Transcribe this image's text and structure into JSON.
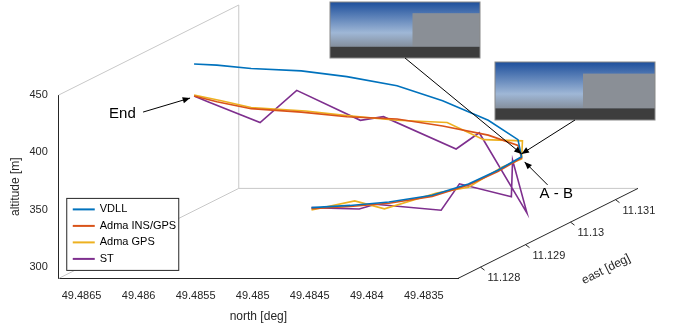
{
  "chart_data": {
    "type": "line",
    "x_label": "north [deg]",
    "y_label": "altitude [m]",
    "z_label": "east [deg]",
    "xlim": [
      49.4832,
      49.4867
    ],
    "xticks": [
      49.4835,
      49.484,
      49.4845,
      49.485,
      49.4855,
      49.486,
      49.4865
    ],
    "ylim": [
      290,
      450
    ],
    "yticks": [
      300,
      350,
      400,
      450
    ],
    "zlim": [
      11.1275,
      11.1315
    ],
    "zticks": [
      11.128,
      11.129,
      11.13,
      11.131
    ],
    "grid": false,
    "legend": "left",
    "annotations": [
      "End",
      "A - B"
    ],
    "series": [
      {
        "name": "VDLL",
        "color": "#0072BD",
        "x": [
          49.4848,
          49.4845,
          49.4842,
          49.4839,
          49.4837,
          49.4836,
          49.48355,
          49.4837,
          49.484,
          49.4844,
          49.4848,
          49.4852,
          49.4856,
          49.486,
          49.4863,
          49.4865
        ],
        "z": [
          11.1283,
          11.1284,
          11.1285,
          11.1287,
          11.129,
          11.1294,
          11.1298,
          11.1301,
          11.1302,
          11.1302,
          11.1302,
          11.1301,
          11.1301,
          11.13,
          11.13,
          11.13
        ],
        "values": [
          336,
          336,
          337,
          339,
          343,
          347,
          351,
          360,
          375,
          392,
          405,
          415,
          420,
          424,
          427,
          428
        ]
      },
      {
        "name": "Adma INS/GPS",
        "color": "#D95319",
        "x": [
          49.4848,
          49.4845,
          49.4842,
          49.4839,
          49.4837,
          49.4836,
          49.48355,
          49.4837,
          49.484,
          49.4844,
          49.4848,
          49.4852,
          49.4856,
          49.486,
          49.4863,
          49.4865
        ],
        "z": [
          11.1283,
          11.1284,
          11.1285,
          11.1287,
          11.129,
          11.1294,
          11.1298,
          11.1301,
          11.1302,
          11.1302,
          11.1302,
          11.1301,
          11.1301,
          11.13,
          11.13,
          11.13
        ],
        "values": [
          335,
          335,
          336,
          338,
          342,
          346,
          350,
          355,
          362,
          370,
          376,
          380,
          384,
          389,
          395,
          400
        ]
      },
      {
        "name": "Adma GPS",
        "color": "#EDB120",
        "x": [
          49.4848,
          49.4845,
          49.4842,
          49.4839,
          49.4837,
          49.4836,
          49.48355,
          49.4837,
          49.484,
          49.4844,
          49.4848,
          49.4852,
          49.4856,
          49.486,
          49.4863,
          49.4865
        ],
        "z": [
          11.1283,
          11.1285,
          11.1284,
          11.1288,
          11.129,
          11.1295,
          11.1298,
          11.1302,
          11.1301,
          11.1303,
          11.1302,
          11.1301,
          11.1302,
          11.13,
          11.1301,
          11.13
        ],
        "values": [
          334,
          338,
          333,
          339,
          340,
          348,
          349,
          357,
          360,
          371,
          375,
          381,
          383,
          390,
          394,
          401
        ]
      },
      {
        "name": "ST",
        "color": "#7E2F8E",
        "x": [
          49.4848,
          49.4845,
          49.4842,
          49.4839,
          49.4837,
          49.4836,
          49.48355,
          49.4837,
          49.484,
          49.4844,
          49.4848,
          49.4852,
          49.4856,
          49.486,
          49.4863,
          49.4865
        ],
        "z": [
          11.1283,
          11.1286,
          11.1282,
          11.1289,
          11.1288,
          11.1297,
          11.1296,
          11.1303,
          11.13,
          11.1305,
          11.1299,
          11.1304,
          11.13,
          11.1302,
          11.1298,
          11.13
        ],
        "values": [
          336,
          329,
          341,
          322,
          347,
          318,
          352,
          292,
          368,
          344,
          384,
          371,
          405,
          373,
          399,
          400
        ]
      }
    ]
  }
}
